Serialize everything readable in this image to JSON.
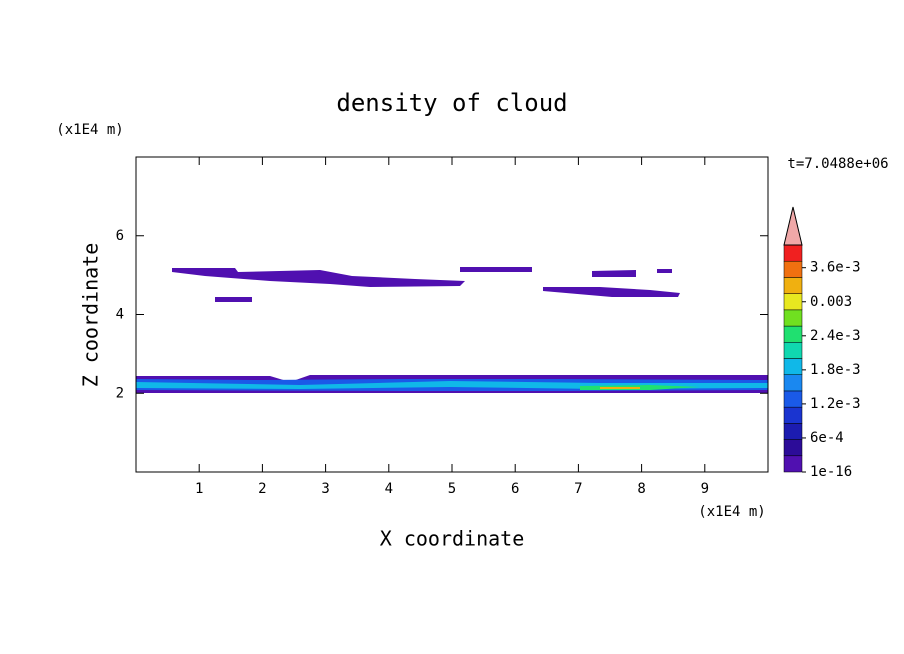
{
  "chart_data": {
    "type": "contour",
    "title": "density of cloud",
    "x_label": "X coordinate",
    "y_label": "Z coordinate",
    "x_unit": "(x1E4 m)",
    "y_unit": "(x1E4 m)",
    "time_label": "t=7.0488e+06",
    "xlim": [
      0,
      10
    ],
    "xticks": [
      1,
      2,
      3,
      4,
      5,
      6,
      7,
      8,
      9
    ],
    "ylim": [
      0,
      8
    ],
    "yticks": [
      2,
      4,
      6
    ],
    "colorbar": {
      "lim": [
        1e-16,
        0.004
      ],
      "ticks": [
        {
          "value": 1e-16,
          "label": "1e-16"
        },
        {
          "value": 0.0006,
          "label": "6e-4"
        },
        {
          "value": 0.0012,
          "label": "1.2e-3"
        },
        {
          "value": 0.0018,
          "label": "1.8e-3"
        },
        {
          "value": 0.0024,
          "label": "2.4e-3"
        },
        {
          "value": 0.003,
          "label": "0.003"
        },
        {
          "value": 0.0036,
          "label": "3.6e-3"
        }
      ],
      "colors": [
        "#5010b0",
        "#2c0c98",
        "#1c1cb0",
        "#1a34d0",
        "#1a5ae8",
        "#1a88f0",
        "#10b8e8",
        "#10d8b0",
        "#20e070",
        "#70e020",
        "#e8e820",
        "#f0b010",
        "#f07010",
        "#f02020"
      ],
      "extend_color": "#f0a8a8"
    }
  }
}
